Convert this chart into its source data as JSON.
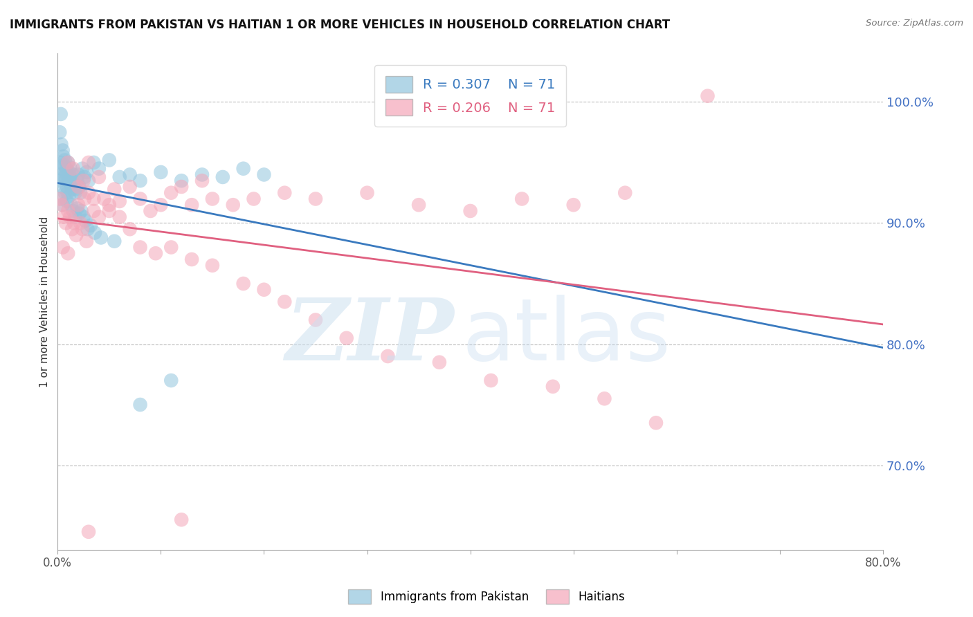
{
  "title": "IMMIGRANTS FROM PAKISTAN VS HAITIAN 1 OR MORE VEHICLES IN HOUSEHOLD CORRELATION CHART",
  "source": "Source: ZipAtlas.com",
  "ylabel": "1 or more Vehicles in Household",
  "right_yticks": [
    70.0,
    80.0,
    90.0,
    100.0
  ],
  "blue_R": 0.307,
  "blue_N": 71,
  "pink_R": 0.206,
  "pink_N": 71,
  "blue_color": "#92c5de",
  "pink_color": "#f4a6b8",
  "blue_line_color": "#3a7abf",
  "pink_line_color": "#e06080",
  "legend_label_blue": "Immigrants from Pakistan",
  "legend_label_pink": "Haitians",
  "watermark_zip": "ZIP",
  "watermark_atlas": "atlas",
  "xmin": 0,
  "xmax": 80,
  "ymin": 63,
  "ymax": 104,
  "blue_scatter_x": [
    0.1,
    0.15,
    0.2,
    0.25,
    0.3,
    0.35,
    0.4,
    0.45,
    0.5,
    0.55,
    0.6,
    0.65,
    0.7,
    0.75,
    0.8,
    0.85,
    0.9,
    0.95,
    1.0,
    1.05,
    1.1,
    1.15,
    1.2,
    1.25,
    1.3,
    1.35,
    1.4,
    1.5,
    1.6,
    1.7,
    1.8,
    1.9,
    2.0,
    2.1,
    2.2,
    2.4,
    2.6,
    2.8,
    3.0,
    3.5,
    4.0,
    5.0,
    6.0,
    7.0,
    8.0,
    10.0,
    12.0,
    14.0,
    16.0,
    18.0,
    20.0,
    0.3,
    0.5,
    0.7,
    0.9,
    1.1,
    1.3,
    1.5,
    1.7,
    1.9,
    2.1,
    2.3,
    2.5,
    2.7,
    2.9,
    3.2,
    3.6,
    4.2,
    5.5,
    8.0,
    11.0
  ],
  "blue_scatter_y": [
    93.5,
    94.0,
    97.5,
    95.0,
    99.0,
    96.5,
    94.5,
    93.0,
    96.0,
    95.5,
    94.8,
    93.8,
    95.2,
    94.2,
    93.6,
    94.5,
    93.0,
    92.5,
    95.0,
    93.5,
    94.2,
    93.8,
    94.6,
    93.2,
    93.8,
    93.5,
    92.8,
    94.0,
    93.2,
    92.5,
    92.8,
    93.5,
    94.0,
    93.0,
    92.5,
    94.5,
    93.8,
    94.2,
    93.5,
    95.0,
    94.5,
    95.2,
    93.8,
    94.0,
    93.5,
    94.2,
    93.5,
    94.0,
    93.8,
    94.5,
    94.0,
    92.0,
    91.5,
    92.5,
    91.8,
    92.2,
    91.5,
    91.0,
    90.5,
    91.2,
    90.8,
    91.0,
    90.5,
    90.2,
    89.5,
    89.8,
    89.2,
    88.8,
    88.5,
    75.0,
    77.0
  ],
  "pink_scatter_x": [
    0.2,
    0.4,
    0.6,
    0.8,
    1.0,
    1.2,
    1.4,
    1.6,
    1.8,
    2.0,
    2.2,
    2.4,
    2.6,
    2.8,
    3.0,
    3.5,
    4.0,
    4.5,
    5.0,
    5.5,
    6.0,
    7.0,
    8.0,
    9.0,
    10.0,
    11.0,
    12.0,
    13.0,
    14.0,
    15.0,
    17.0,
    19.0,
    22.0,
    25.0,
    30.0,
    35.0,
    40.0,
    45.0,
    50.0,
    55.0,
    63.0,
    1.0,
    1.5,
    2.0,
    2.5,
    3.0,
    3.5,
    4.0,
    5.0,
    6.0,
    7.0,
    8.0,
    9.5,
    11.0,
    13.0,
    15.0,
    18.0,
    20.0,
    22.0,
    25.0,
    28.0,
    32.0,
    37.0,
    42.0,
    48.0,
    53.0,
    58.0,
    0.5,
    1.0,
    3.0,
    12.0
  ],
  "pink_scatter_y": [
    92.0,
    91.5,
    90.5,
    90.0,
    91.0,
    90.5,
    89.5,
    90.0,
    89.0,
    91.5,
    90.0,
    89.5,
    92.0,
    88.5,
    92.5,
    91.0,
    90.5,
    92.0,
    91.5,
    92.8,
    91.8,
    93.0,
    92.0,
    91.0,
    91.5,
    92.5,
    93.0,
    91.5,
    93.5,
    92.0,
    91.5,
    92.0,
    92.5,
    92.0,
    92.5,
    91.5,
    91.0,
    92.0,
    91.5,
    92.5,
    100.5,
    95.0,
    94.5,
    93.0,
    93.5,
    95.0,
    92.0,
    93.8,
    91.0,
    90.5,
    89.5,
    88.0,
    87.5,
    88.0,
    87.0,
    86.5,
    85.0,
    84.5,
    83.5,
    82.0,
    80.5,
    79.0,
    78.5,
    77.0,
    76.5,
    75.5,
    73.5,
    88.0,
    87.5,
    64.5,
    65.5
  ]
}
